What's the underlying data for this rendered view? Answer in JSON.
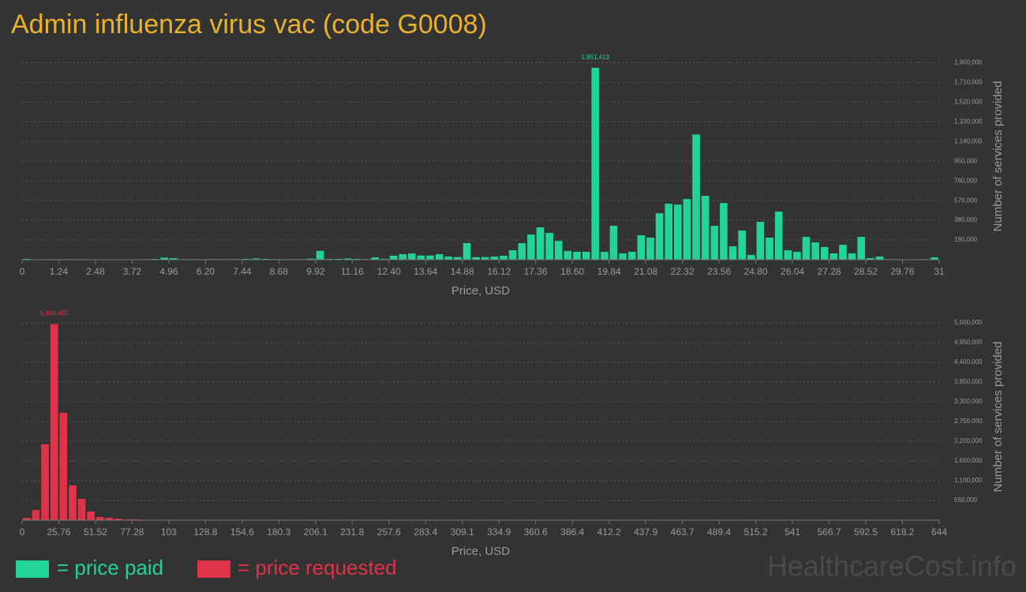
{
  "title": "Admin influenza virus vac (code G0008)",
  "watermark": "HealthcareCost.info",
  "chart_data": [
    {
      "type": "histogram",
      "xlabel": "Price, USD",
      "ylabel": "Number of services provided",
      "grid": true,
      "bins": [
        0,
        0.31,
        0.62,
        0.93,
        1.24,
        1.55,
        1.86,
        2.17,
        2.48,
        2.79,
        3.1,
        3.41,
        3.72,
        4.03,
        4.34,
        4.65,
        4.96,
        5.27,
        5.58,
        5.89,
        6.2,
        6.51,
        6.82,
        7.13,
        7.44,
        7.75,
        8.06,
        8.37,
        8.68,
        8.99,
        9.3,
        9.61,
        9.92,
        10.23,
        10.54,
        10.85,
        11.16,
        11.47,
        11.78,
        12.09,
        12.4,
        12.71,
        13.02,
        13.33,
        13.64,
        13.95,
        14.26,
        14.57,
        14.88,
        15.19,
        15.5,
        15.81,
        16.12,
        16.43,
        16.74,
        17.05,
        17.36,
        17.67,
        17.98,
        18.29,
        18.6,
        18.91,
        19.22,
        19.53,
        19.84,
        20.15,
        20.46,
        20.77,
        21.08,
        21.39,
        21.7,
        22.01,
        22.32,
        22.63,
        22.94,
        23.25,
        23.56,
        23.87,
        24.18,
        24.49,
        24.8,
        25.11,
        25.42,
        25.73,
        26.04,
        26.35,
        26.66,
        26.97,
        27.28,
        27.59,
        27.9,
        28.21,
        28.52,
        28.83,
        29.14,
        29.45,
        29.76,
        30.07,
        30.38,
        30.69,
        31
      ],
      "series": [
        {
          "name": "= price paid",
          "color": "#22d39a",
          "values": [
            8000,
            0,
            0,
            5000,
            5000,
            5000,
            5000,
            0,
            0,
            3000,
            3000,
            3000,
            3000,
            5000,
            8000,
            20000,
            15000,
            5000,
            5000,
            5000,
            5000,
            5000,
            5000,
            5000,
            8000,
            12000,
            8000,
            5000,
            5000,
            5000,
            5000,
            10000,
            85000,
            8000,
            8000,
            12000,
            8000,
            5000,
            22000,
            8000,
            38000,
            53000,
            60000,
            40000,
            40000,
            53000,
            30000,
            25000,
            160000,
            25000,
            25000,
            30000,
            38000,
            91000,
            160000,
            243000,
            312000,
            258000,
            182000,
            84000,
            76000,
            76000,
            1851413,
            76000,
            327000,
            61000,
            76000,
            236000,
            213000,
            448000,
            540000,
            532000,
            585000,
            1208000,
            616000,
            327000,
            547000,
            129000,
            281000,
            46000,
            365000,
            213000,
            464000,
            91000,
            76000,
            220000,
            167000,
            122000,
            61000,
            144000,
            61000,
            220000,
            15000,
            30000,
            5000,
            5000,
            3000,
            3000,
            5000,
            22000
          ],
          "value_labels": [
            null,
            null,
            null,
            null,
            null,
            null,
            null,
            null,
            null,
            null,
            null,
            null,
            null,
            null,
            null,
            null,
            null,
            null,
            null,
            null,
            null,
            null,
            null,
            null,
            null,
            null,
            null,
            null,
            null,
            null,
            null,
            null,
            null,
            null,
            null,
            null,
            null,
            null,
            null,
            null,
            null,
            null,
            null,
            null,
            null,
            null,
            null,
            null,
            null,
            null,
            null,
            null,
            null,
            null,
            null,
            null,
            null,
            null,
            null,
            null,
            null,
            null,
            "1,851,413",
            null,
            null,
            null,
            null,
            null,
            null,
            null,
            null,
            null,
            null,
            null,
            null,
            null,
            null,
            null,
            null,
            null,
            null,
            null,
            null,
            null,
            null,
            null,
            null,
            null,
            null,
            null,
            null,
            null,
            null,
            null,
            null,
            null,
            null,
            null,
            null,
            null
          ]
        }
      ],
      "xlim": [
        0,
        31
      ],
      "xticks": [
        0,
        1.24,
        2.48,
        3.72,
        4.96,
        {
          "value": 6.2,
          "label": "6.20"
        },
        7.44,
        8.68,
        9.92,
        11.16,
        {
          "value": 12.4,
          "label": "12.40"
        },
        13.64,
        14.88,
        16.12,
        17.36,
        {
          "value": 18.6,
          "label": "18.60"
        },
        19.84,
        21.08,
        22.32,
        23.56,
        {
          "value": 24.8,
          "label": "24.80"
        },
        26.04,
        27.28,
        28.52,
        29.76,
        31
      ],
      "ylim": [
        0,
        1995000
      ],
      "yticks": [
        {
          "value": 190000,
          "label": "190,000"
        },
        {
          "value": 380000,
          "label": "380,000"
        },
        {
          "value": 570000,
          "label": "570,000"
        },
        {
          "value": 760000,
          "label": "760,000"
        },
        {
          "value": 950000,
          "label": "950,000"
        },
        {
          "value": 1140000,
          "label": "1,140,000"
        },
        {
          "value": 1330000,
          "label": "1,330,000"
        },
        {
          "value": 1520000,
          "label": "1,520,000"
        },
        {
          "value": 1710000,
          "label": "1,710,000"
        },
        {
          "value": 1900000,
          "label": "1,900,000"
        }
      ]
    },
    {
      "type": "histogram",
      "xlabel": "Price, USD",
      "ylabel": "Number of services provided",
      "grid": true,
      "bins": [
        0,
        6.44,
        12.88,
        19.32,
        25.76,
        32.2,
        38.64,
        45.08,
        51.52,
        57.96,
        64.4,
        70.84,
        77.28,
        83.72,
        90.16,
        96.6,
        103.04,
        109.48,
        115.92,
        122.36,
        128.8,
        135.24,
        141.68,
        148.12,
        154.56,
        161,
        167.44,
        173.88,
        180.32,
        186.76,
        193.2,
        199.64,
        206.08,
        212.52,
        218.96,
        225.4,
        231.84,
        238.28,
        244.72,
        251.16,
        257.6,
        264.04,
        270.48,
        276.92,
        283.36,
        289.8,
        296.24,
        302.68,
        309.12,
        315.56,
        322,
        328.44,
        334.88,
        341.32,
        347.76,
        354.2,
        360.64,
        367.08,
        373.52,
        379.96,
        386.4,
        392.84,
        399.28,
        405.72,
        412.16,
        418.6,
        425.04,
        431.48,
        437.92,
        444.36,
        450.8,
        457.24,
        463.68,
        470.12,
        476.56,
        483,
        489.44,
        495.88,
        502.32,
        508.76,
        515.2,
        521.64,
        528.08,
        534.52,
        540.96,
        547.4,
        553.84,
        560.28,
        566.72,
        573.16,
        579.6,
        586.04,
        592.48,
        598.92,
        605.36,
        611.8,
        618.24,
        624.68,
        631.12,
        637.56,
        644
      ],
      "series": [
        {
          "name": "= price requested",
          "color": "#e0334a",
          "values": [
            66000,
            286000,
            2112000,
            5464405,
            2992000,
            968000,
            594000,
            242000,
            88000,
            66000,
            44000,
            22000,
            22000,
            5000,
            5000,
            3000,
            3000,
            3000,
            2000,
            2000,
            2000,
            2000,
            2000,
            2000,
            2000,
            2000,
            2000,
            1000,
            1000,
            1000,
            1000,
            1000,
            1000,
            1000,
            1000,
            1000,
            1000,
            1000,
            1000,
            2000,
            2000,
            1000,
            1000,
            1000,
            1000,
            1000,
            1000,
            1000,
            1000,
            2000,
            1000,
            1000,
            1000,
            1000,
            1000,
            1000,
            1000,
            1000,
            1000,
            1000,
            1000,
            1000,
            1000,
            1000,
            2000,
            1000,
            1000,
            1000,
            1000,
            1000,
            1000,
            1000,
            1000,
            1000,
            1000,
            1000,
            1000,
            1000,
            1000,
            1000,
            1000,
            1000,
            1000,
            1000,
            1000,
            1000,
            1000,
            1000,
            1000,
            1000,
            1000,
            1000,
            1000,
            1000,
            1000,
            1000,
            1000,
            1000,
            1000,
            2000
          ],
          "value_labels": [
            null,
            null,
            null,
            "5,464,405",
            null,
            null,
            null,
            null,
            null,
            null,
            null,
            null,
            null,
            null,
            null,
            null,
            null,
            null,
            null,
            null,
            null,
            null,
            null,
            null,
            null,
            null,
            null,
            null,
            null,
            null,
            null,
            null,
            null,
            null,
            null,
            null,
            null,
            null,
            null,
            null,
            null,
            null,
            null,
            null,
            null,
            null,
            null,
            null,
            null,
            null,
            null,
            null,
            null,
            null,
            null,
            null,
            null,
            null,
            null,
            null,
            null,
            null,
            null,
            null,
            null,
            null,
            null,
            null,
            null,
            null,
            null,
            null,
            null,
            null,
            null,
            null,
            null,
            null,
            null,
            null,
            null,
            null,
            null,
            null,
            null,
            null,
            null,
            null,
            null,
            null,
            null,
            null,
            null,
            null,
            null,
            null,
            null,
            null,
            null,
            null
          ]
        }
      ],
      "xlim": [
        0,
        644
      ],
      "xticks": [
        0,
        25.76,
        51.52,
        77.28,
        103,
        128.8,
        154.6,
        180.3,
        206.1,
        231.8,
        257.6,
        283.4,
        309.1,
        334.9,
        360.6,
        386.4,
        412.2,
        437.9,
        463.7,
        489.4,
        515.2,
        541,
        566.7,
        592.5,
        618.2,
        644
      ],
      "ylim": [
        0,
        5764000
      ],
      "yticks": [
        {
          "value": 550000,
          "label": "550,000"
        },
        {
          "value": 1100000,
          "label": "1,100,000"
        },
        {
          "value": 1650000,
          "label": "1,650,000"
        },
        {
          "value": 2200000,
          "label": "2,200,000"
        },
        {
          "value": 2750000,
          "label": "2,750,000"
        },
        {
          "value": 3300000,
          "label": "3,300,000"
        },
        {
          "value": 3850000,
          "label": "3,850,000"
        },
        {
          "value": 4400000,
          "label": "4,400,000"
        },
        {
          "value": 4950000,
          "label": "4,950,000"
        },
        {
          "value": 5500000,
          "label": "5,500,000"
        }
      ]
    }
  ]
}
